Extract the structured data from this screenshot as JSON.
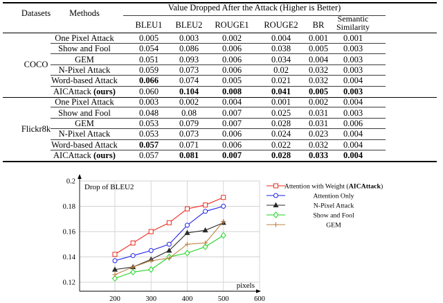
{
  "table": {
    "top_header": "Value Dropped After the Attack (Higher is Better)",
    "datasets_label": "Datasets",
    "methods_label": "Methods",
    "metric_columns": [
      "BLEU1",
      "BLEU2",
      "ROUGE1",
      "ROUGE2",
      "BR"
    ],
    "semantic_col": {
      "line1": "Semantic",
      "line2": "Similarity"
    },
    "sections": [
      {
        "dataset": "COCO",
        "rows": [
          {
            "method": "One Pixel Attack",
            "method_bold": "",
            "values": [
              "0.005",
              "0.003",
              "0.002",
              "0.004",
              "0.001",
              "0.001"
            ],
            "bold": [
              false,
              false,
              false,
              false,
              false,
              false
            ]
          },
          {
            "method": "Show and Fool",
            "method_bold": "",
            "values": [
              "0.054",
              "0.086",
              "0.006",
              "0.038",
              "0.005",
              "0.003"
            ],
            "bold": [
              false,
              false,
              false,
              false,
              false,
              false
            ]
          },
          {
            "method": "GEM",
            "method_bold": "",
            "values": [
              "0.051",
              "0.093",
              "0.006",
              "0.034",
              "0.004",
              "0.003"
            ],
            "bold": [
              false,
              false,
              false,
              false,
              false,
              false
            ]
          },
          {
            "method": "N-Pixel Attack",
            "method_bold": "",
            "values": [
              "0.059",
              "0.073",
              "0.006",
              "0.02",
              "0.032",
              "0.003"
            ],
            "bold": [
              false,
              false,
              false,
              false,
              false,
              false
            ]
          },
          {
            "method": "Word-based Attack",
            "method_bold": "",
            "values": [
              "0.066",
              "0.074",
              "0.005",
              "0.021",
              "0.032",
              "0.004"
            ],
            "bold": [
              true,
              false,
              false,
              false,
              false,
              false
            ]
          },
          {
            "method": "AICAttack ",
            "method_bold": "(ours)",
            "values": [
              "0.060",
              "0.104",
              "0.008",
              "0.041",
              "0.005",
              "0.003"
            ],
            "bold": [
              false,
              true,
              true,
              true,
              true,
              true
            ]
          }
        ]
      },
      {
        "dataset": "Flickr8k",
        "rows": [
          {
            "method": "One Pixel Attack",
            "method_bold": "",
            "values": [
              "0.003",
              "0.002",
              "0.004",
              "0.001",
              "0.002",
              "0.004"
            ],
            "bold": [
              false,
              false,
              false,
              false,
              false,
              false
            ]
          },
          {
            "method": "Show and Fool",
            "method_bold": "",
            "values": [
              "0.048",
              "0.08",
              "0.007",
              "0.025",
              "0.031",
              "0.003"
            ],
            "bold": [
              false,
              false,
              false,
              false,
              false,
              false
            ]
          },
          {
            "method": "GEM",
            "method_bold": "",
            "values": [
              "0.053",
              "0.079",
              "0.007",
              "0.028",
              "0.031",
              "0.006"
            ],
            "bold": [
              false,
              false,
              false,
              false,
              false,
              false
            ]
          },
          {
            "method": "N-Pixel Attack",
            "method_bold": "",
            "values": [
              "0.053",
              "0.073",
              "0.006",
              "0.024",
              "0.023",
              "0.004"
            ],
            "bold": [
              false,
              false,
              false,
              false,
              false,
              false
            ]
          },
          {
            "method": "Word-based Attack",
            "method_bold": "",
            "values": [
              "0.057",
              "0.071",
              "0.006",
              "0.022",
              "0.032",
              "0.004"
            ],
            "bold": [
              true,
              false,
              false,
              false,
              false,
              false
            ]
          },
          {
            "method": "AICAttack ",
            "method_bold": "(ours)",
            "values": [
              "0.057",
              "0.081",
              "0.007",
              "0.028",
              "0.033",
              "0.004"
            ],
            "bold": [
              false,
              true,
              true,
              true,
              true,
              true
            ]
          }
        ]
      }
    ]
  },
  "chart_data": {
    "type": "line",
    "title": "Drop of BLEU2",
    "xlabel": "pixels",
    "ylabel": "",
    "grid": true,
    "legend_position": "right",
    "xlim": [
      100,
      620
    ],
    "ylim": [
      0.108,
      0.2
    ],
    "x_ticks": [
      200,
      300,
      400,
      500,
      600
    ],
    "y_ticks": [
      0.12,
      0.14,
      0.16,
      0.18,
      0.2
    ],
    "x": [
      200,
      250,
      300,
      350,
      400,
      450,
      500
    ],
    "series": [
      {
        "name": "Attention with Weight (AICAttack)",
        "name_bold_segment": "AICAttack",
        "color": "#ee2a1e",
        "marker": "square",
        "values": [
          0.142,
          0.151,
          0.16,
          0.167,
          0.178,
          0.181,
          0.187
        ]
      },
      {
        "name": "Attention Only",
        "name_bold_segment": "",
        "color": "#1f1fe8",
        "marker": "circle",
        "values": [
          0.137,
          0.141,
          0.145,
          0.15,
          0.165,
          0.176,
          0.18
        ]
      },
      {
        "name": "N-Pixel Attack",
        "name_bold_segment": "",
        "color": "#2b2b2b",
        "marker": "triangle",
        "values": [
          0.13,
          0.132,
          0.138,
          0.145,
          0.159,
          0.161,
          0.167
        ]
      },
      {
        "name": "Show and Fool",
        "name_bold_segment": "",
        "color": "#1ed41e",
        "marker": "diamond",
        "values": [
          0.123,
          0.128,
          0.13,
          0.14,
          0.143,
          0.148,
          0.157
        ]
      },
      {
        "name": "GEM",
        "name_bold_segment": "",
        "color": "#bf8040",
        "marker": "plus",
        "values": [
          0.126,
          0.132,
          0.137,
          0.139,
          0.15,
          0.151,
          0.168
        ]
      }
    ]
  }
}
